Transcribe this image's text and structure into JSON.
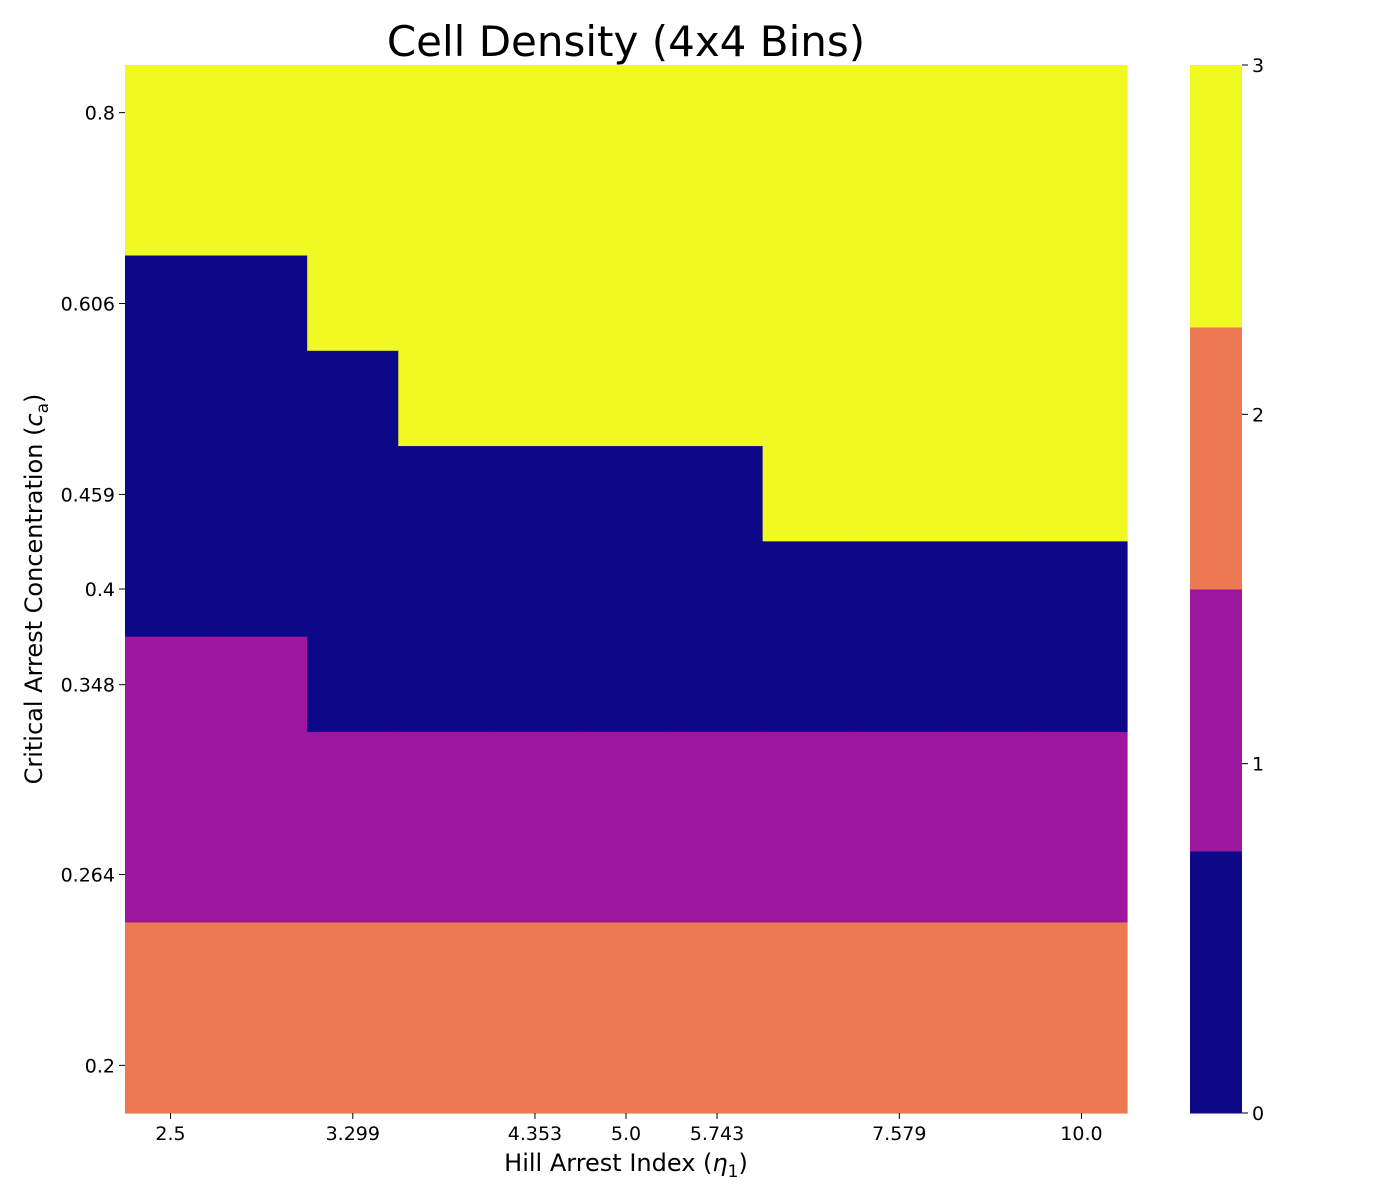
{
  "chart_data": {
    "type": "heatmap",
    "title": "Cell Density (4x4 Bins)",
    "xlabel": "Hill Arrest Index (",
    "xlabel_symbol": "η",
    "xlabel_sub": "1",
    "xlabel_close": ")",
    "ylabel": "Critical Arrest Concentration (",
    "ylabel_symbol": "c",
    "ylabel_sub": "a",
    "ylabel_close": ")",
    "x_ticks": [
      "2.5",
      "3.299",
      "4.353",
      "5.0",
      "5.743",
      "7.579",
      "10.0"
    ],
    "y_ticks": [
      "0.8",
      "0.606",
      "0.459",
      "0.4",
      "0.348",
      "0.264",
      "0.2"
    ],
    "columns": 11,
    "rows": 11,
    "values": [
      [
        3,
        3,
        3,
        3,
        3,
        3,
        3,
        3,
        3,
        3,
        3
      ],
      [
        3,
        3,
        3,
        3,
        3,
        3,
        3,
        3,
        3,
        3,
        3
      ],
      [
        0,
        0,
        3,
        3,
        3,
        3,
        3,
        3,
        3,
        3,
        3
      ],
      [
        0,
        0,
        0,
        3,
        3,
        3,
        3,
        3,
        3,
        3,
        3
      ],
      [
        0,
        0,
        0,
        0,
        0,
        0,
        0,
        3,
        3,
        3,
        3
      ],
      [
        0,
        0,
        0,
        0,
        0,
        0,
        0,
        0,
        0,
        0,
        0
      ],
      [
        1,
        1,
        0,
        0,
        0,
        0,
        0,
        0,
        0,
        0,
        0
      ],
      [
        1,
        1,
        1,
        1,
        1,
        1,
        1,
        1,
        1,
        1,
        1
      ],
      [
        1,
        1,
        1,
        1,
        1,
        1,
        1,
        1,
        1,
        1,
        1
      ],
      [
        2,
        2,
        2,
        2,
        2,
        2,
        2,
        2,
        2,
        2,
        2
      ],
      [
        2,
        2,
        2,
        2,
        2,
        2,
        2,
        2,
        2,
        2,
        2
      ]
    ],
    "colorbar": {
      "min": 0,
      "max": 3,
      "ticks": [
        "0",
        "1",
        "2",
        "3"
      ],
      "colors": [
        "#0d0887",
        "#9c179e",
        "#ed7953",
        "#f0f921"
      ]
    }
  }
}
